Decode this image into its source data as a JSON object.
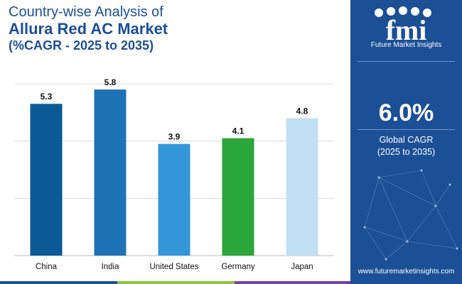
{
  "header": {
    "line1": "Country-wise Analysis of",
    "line2": "Allura Red AC Market",
    "line3": "(%CAGR - 2025 to 2035)"
  },
  "sidebar": {
    "logo_letters": "fmi",
    "logo_name": "Future Market Insights",
    "cagr_value": "6.0%",
    "cagr_label": "Global CAGR",
    "cagr_period": "(2025 to 2035)",
    "website": "www.futuremarketinsights.com"
  },
  "colors": {
    "brand": "#1b4f96",
    "stripe": [
      "#1b4f96",
      "#8bc53f",
      "#7b3f98"
    ]
  },
  "chart_data": {
    "type": "bar",
    "categories": [
      "China",
      "India",
      "United States",
      "Germany",
      "Japan"
    ],
    "values": [
      5.3,
      5.8,
      3.9,
      4.1,
      4.8
    ],
    "value_labels": [
      "5.3",
      "5.8",
      "3.9",
      "4.1",
      "4.8"
    ],
    "bar_colors": [
      "#0b5a96",
      "#1f72b5",
      "#3396d9",
      "#2aa63a",
      "#c2e0f4"
    ],
    "title": "",
    "xlabel": "",
    "ylabel": "",
    "ylim": [
      0,
      6
    ],
    "grid": true
  }
}
